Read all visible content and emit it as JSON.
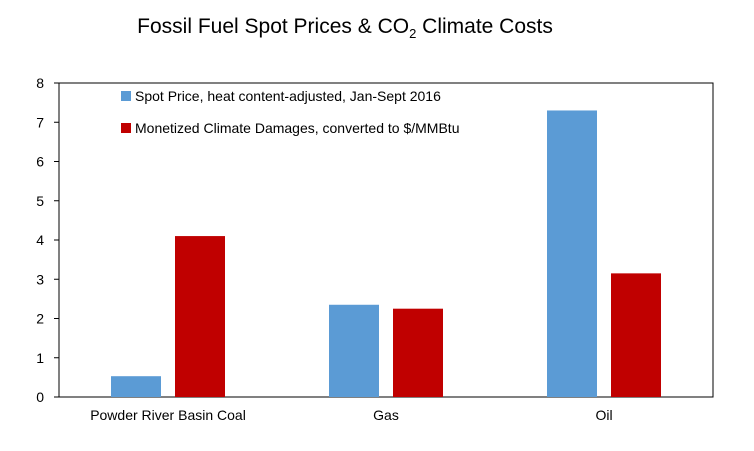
{
  "chart_data": {
    "type": "bar",
    "title": {
      "before": "Fossil Fuel Spot Prices & CO",
      "subscript": "2",
      "after": " Climate Costs"
    },
    "categories": [
      "Powder River Basin Coal",
      "Gas",
      "Oil"
    ],
    "series": [
      {
        "name": "Spot Price, heat content-adjusted, Jan-Sept 2016",
        "color": "#5b9bd5",
        "values": [
          0.53,
          2.35,
          7.3
        ]
      },
      {
        "name": "Monetized Climate Damages, converted to $/MMBtu",
        "color": "#c00000",
        "values": [
          4.1,
          2.25,
          3.15
        ]
      }
    ],
    "xlabel": "",
    "ylabel": "",
    "ylim": [
      0,
      8
    ],
    "yticks": [
      "0",
      "1",
      "2",
      "3",
      "4",
      "5",
      "6",
      "7",
      "8"
    ],
    "grid": false,
    "legend_position": "top-left (inside plot)"
  }
}
